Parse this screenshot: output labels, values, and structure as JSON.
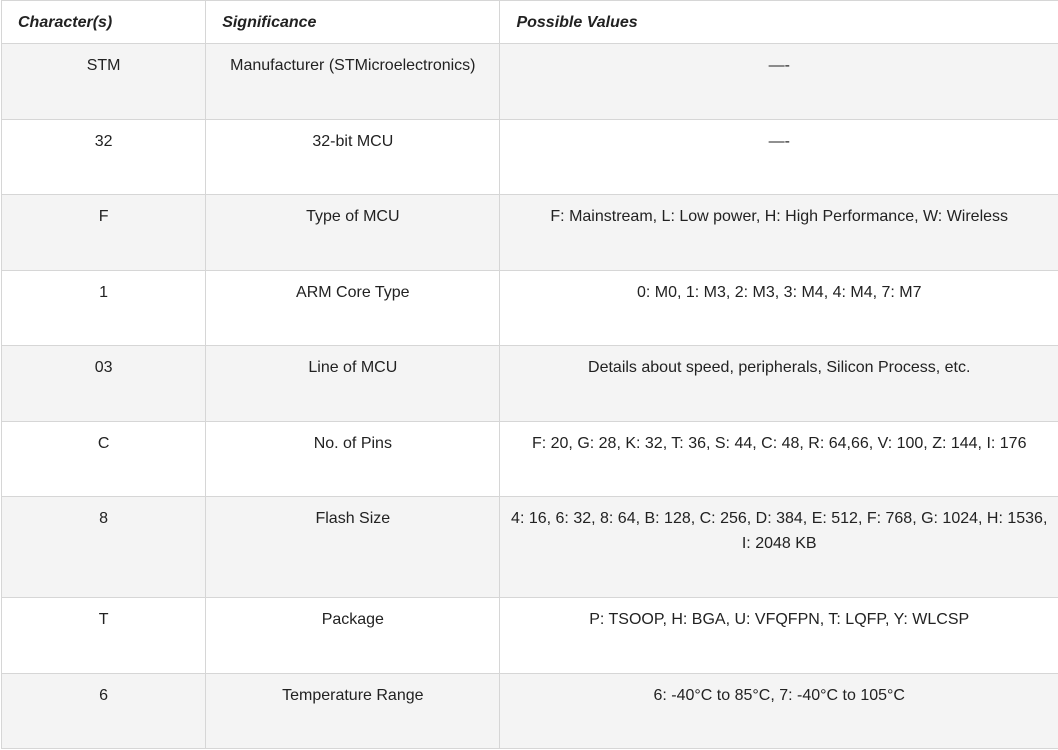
{
  "table": {
    "headers": [
      "Character(s)",
      "Significance",
      "Possible Values"
    ],
    "rows": [
      [
        "STM",
        "Manufacturer (STMicroelectronics)",
        "—-"
      ],
      [
        "32",
        "32-bit MCU",
        "—-"
      ],
      [
        "F",
        "Type of MCU",
        "F: Mainstream, L: Low power, H: High Performance, W: Wireless"
      ],
      [
        "1",
        "ARM Core Type",
        "0: M0, 1: M3, 2: M3, 3: M4, 4: M4, 7: M7"
      ],
      [
        "03",
        "Line of MCU",
        "Details about speed, peripherals, Silicon Process, etc."
      ],
      [
        "C",
        "No. of Pins",
        "F: 20, G: 28, K: 32, T: 36, S: 44, C: 48, R: 64,66, V: 100, Z: 144, I: 176"
      ],
      [
        "8",
        "Flash Size",
        "4: 16, 6: 32, 8: 64, B: 128, C: 256, D: 384, E: 512, F: 768, G: 1024, H: 1536, I: 2048 KB"
      ],
      [
        "T",
        "Package",
        "P: TSOOP, H: BGA, U: VFQFPN, T: LQFP, Y: WLCSP"
      ],
      [
        "6",
        "Temperature Range",
        "6: -40°C to 85°C, 7: -40°C to 105°C"
      ]
    ]
  }
}
